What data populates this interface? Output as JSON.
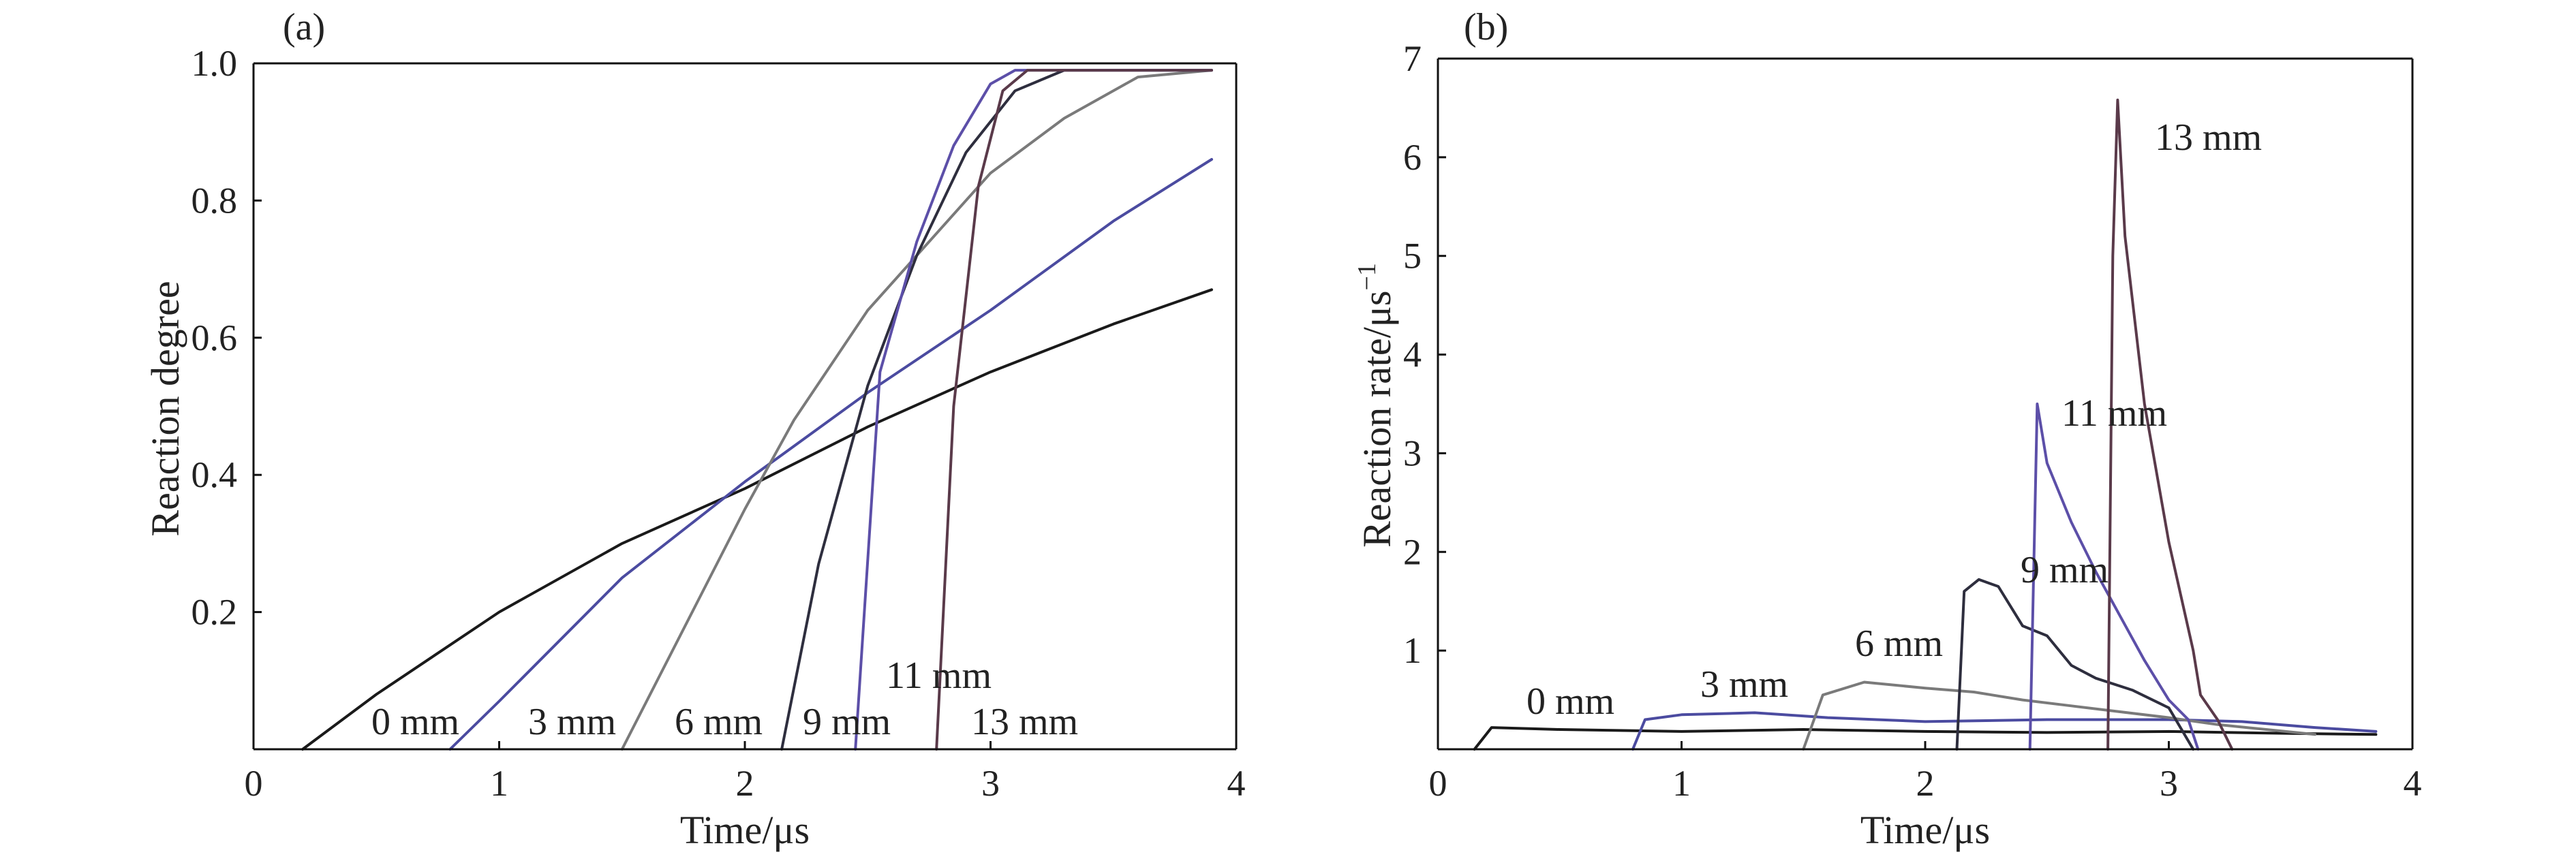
{
  "chart_data": [
    {
      "type": "line",
      "panel_label": "(a)",
      "xlabel": "Time/μs",
      "ylabel": "Reaction degree",
      "xlim": [
        0,
        4
      ],
      "ylim": [
        0,
        1.0
      ],
      "x_ticks": [
        0,
        1,
        2,
        3,
        4
      ],
      "x_tick_labels": [
        "0",
        "1",
        "2",
        "3",
        "4"
      ],
      "y_ticks": [
        0.2,
        0.4,
        0.6,
        0.8,
        1.0
      ],
      "y_tick_labels": [
        "0.2",
        "0.4",
        "0.6",
        "0.8",
        "1.0"
      ],
      "grid": false,
      "series": [
        {
          "name": "0 mm",
          "color": "#1a1a1a",
          "x": [
            0.2,
            0.5,
            1.0,
            1.5,
            2.0,
            2.5,
            3.0,
            3.5,
            3.9
          ],
          "y": [
            0.0,
            0.08,
            0.2,
            0.3,
            0.38,
            0.47,
            0.55,
            0.62,
            0.67
          ]
        },
        {
          "name": "3 mm",
          "color": "#4b4ba0",
          "x": [
            0.8,
            1.0,
            1.5,
            2.0,
            2.5,
            3.0,
            3.5,
            3.9
          ],
          "y": [
            0.0,
            0.07,
            0.25,
            0.39,
            0.52,
            0.64,
            0.77,
            0.86
          ]
        },
        {
          "name": "6 mm",
          "color": "#7a7a7a",
          "x": [
            1.5,
            1.8,
            2.0,
            2.2,
            2.5,
            2.8,
            3.0,
            3.3,
            3.6,
            3.9
          ],
          "y": [
            0.0,
            0.21,
            0.35,
            0.48,
            0.64,
            0.76,
            0.84,
            0.92,
            0.98,
            0.99
          ]
        },
        {
          "name": "9 mm",
          "color": "#2e2e3e",
          "x": [
            2.15,
            2.3,
            2.5,
            2.7,
            2.9,
            3.1,
            3.3,
            3.5,
            3.9
          ],
          "y": [
            0.0,
            0.27,
            0.53,
            0.72,
            0.87,
            0.96,
            0.99,
            0.99,
            0.99
          ]
        },
        {
          "name": "11 mm",
          "color": "#5c4fa8",
          "x": [
            2.45,
            2.55,
            2.7,
            2.85,
            3.0,
            3.1,
            3.9
          ],
          "y": [
            0.0,
            0.55,
            0.74,
            0.88,
            0.97,
            0.99,
            0.99
          ]
        },
        {
          "name": "13 mm",
          "color": "#5a3a4a",
          "x": [
            2.78,
            2.85,
            2.95,
            3.05,
            3.15,
            3.9
          ],
          "y": [
            0.0,
            0.5,
            0.82,
            0.96,
            0.99,
            0.99
          ]
        }
      ],
      "annotations": [
        "0 mm",
        "3 mm",
        "6 mm",
        "9 mm",
        "11 mm",
        "13 mm"
      ]
    },
    {
      "type": "line",
      "panel_label": "(b)",
      "xlabel": "Time/μs",
      "ylabel": "Reaction rate/μs",
      "ylabel_superscript": "−1",
      "xlim": [
        0,
        4
      ],
      "ylim": [
        0,
        7
      ],
      "x_ticks": [
        0,
        1,
        2,
        3,
        4
      ],
      "x_tick_labels": [
        "0",
        "1",
        "2",
        "3",
        "4"
      ],
      "y_ticks": [
        1,
        2,
        3,
        4,
        5,
        6,
        7
      ],
      "y_tick_labels": [
        "1",
        "2",
        "3",
        "4",
        "5",
        "6",
        "7"
      ],
      "grid": false,
      "series": [
        {
          "name": "0 mm",
          "color": "#1a1a1a",
          "x": [
            0.15,
            0.22,
            0.5,
            1.0,
            1.5,
            2.0,
            2.5,
            3.0,
            3.5,
            3.85
          ],
          "y": [
            0.0,
            0.22,
            0.2,
            0.18,
            0.2,
            0.18,
            0.17,
            0.18,
            0.16,
            0.15
          ]
        },
        {
          "name": "3 mm",
          "color": "#4b4ba0",
          "x": [
            0.8,
            0.85,
            1.0,
            1.3,
            1.6,
            2.0,
            2.5,
            2.9,
            3.0,
            3.3,
            3.6,
            3.85
          ],
          "y": [
            0.0,
            0.3,
            0.35,
            0.37,
            0.32,
            0.28,
            0.3,
            0.3,
            0.3,
            0.28,
            0.22,
            0.18
          ]
        },
        {
          "name": "6 mm",
          "color": "#7a7a7a",
          "x": [
            1.5,
            1.58,
            1.75,
            2.0,
            2.2,
            2.4,
            2.6,
            2.8,
            3.0,
            3.2,
            3.4,
            3.6
          ],
          "y": [
            0.0,
            0.55,
            0.68,
            0.62,
            0.58,
            0.5,
            0.44,
            0.38,
            0.32,
            0.25,
            0.2,
            0.15
          ]
        },
        {
          "name": "9 mm",
          "color": "#2e2e3e",
          "x": [
            2.13,
            2.16,
            2.22,
            2.3,
            2.4,
            2.5,
            2.6,
            2.7,
            2.85,
            3.0,
            3.1
          ],
          "y": [
            0.0,
            1.6,
            1.72,
            1.65,
            1.25,
            1.15,
            0.85,
            0.72,
            0.6,
            0.42,
            0.0
          ]
        },
        {
          "name": "11 mm",
          "color": "#5c4fa8",
          "x": [
            2.43,
            2.46,
            2.5,
            2.6,
            2.7,
            2.8,
            2.9,
            3.0,
            3.08,
            3.12
          ],
          "y": [
            0.0,
            3.5,
            2.9,
            2.3,
            1.8,
            1.35,
            0.9,
            0.5,
            0.3,
            0.0
          ]
        },
        {
          "name": "13 mm",
          "color": "#5a3a4a",
          "x": [
            2.75,
            2.77,
            2.79,
            2.82,
            2.9,
            3.0,
            3.1,
            3.13,
            3.2,
            3.26
          ],
          "y": [
            0.0,
            5.0,
            6.58,
            5.2,
            3.5,
            2.1,
            1.0,
            0.55,
            0.3,
            0.0
          ]
        }
      ],
      "annotations": [
        "0 mm",
        "3 mm",
        "6 mm",
        "9 mm",
        "11 mm",
        "13 mm"
      ]
    }
  ]
}
